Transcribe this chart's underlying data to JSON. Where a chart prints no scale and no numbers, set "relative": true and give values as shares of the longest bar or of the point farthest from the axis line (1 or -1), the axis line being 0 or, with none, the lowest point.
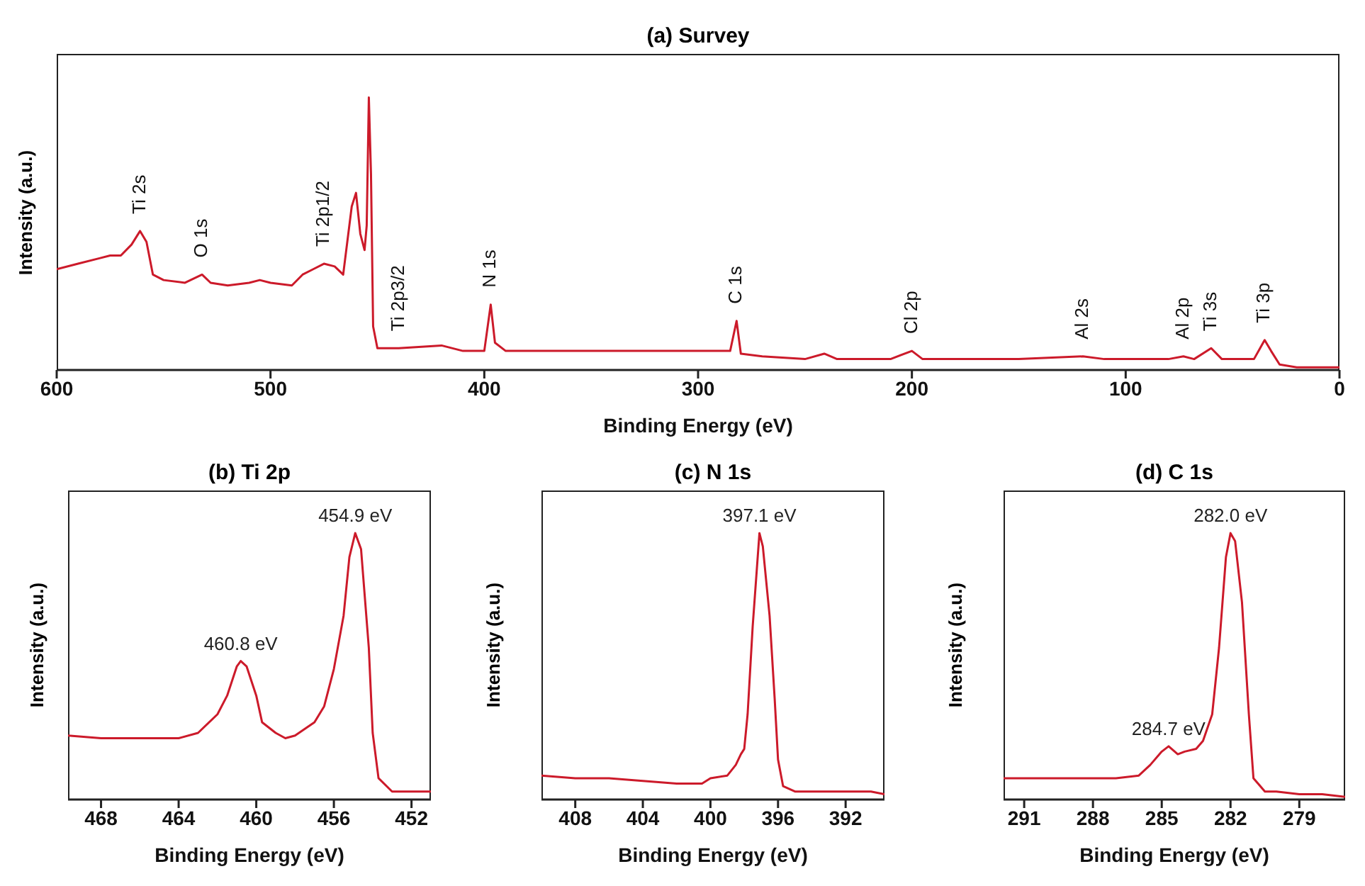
{
  "chart_data": [
    {
      "type": "line",
      "title": "(a) Survey",
      "xlabel": "Binding Energy (eV)",
      "ylabel": "Intensity (a.u.)",
      "relative": true,
      "xlim": [
        600,
        0
      ],
      "xticks": [
        600,
        500,
        400,
        300,
        200,
        100,
        0
      ],
      "x": [
        600,
        590,
        580,
        575,
        570,
        565,
        561,
        558,
        555,
        550,
        540,
        532,
        528,
        520,
        510,
        505,
        500,
        490,
        485,
        480,
        475,
        470,
        466,
        462,
        460,
        458,
        456,
        455,
        454,
        453,
        452,
        450,
        440,
        420,
        410,
        400,
        397,
        395,
        390,
        350,
        300,
        285,
        282,
        280,
        270,
        250,
        241,
        235,
        210,
        200,
        195,
        150,
        120,
        110,
        80,
        73,
        68,
        60,
        55,
        40,
        35,
        32,
        28,
        20,
        0
      ],
      "series": [
        {
          "color": "#cc1a2a",
          "values": [
            0.37,
            0.39,
            0.41,
            0.42,
            0.42,
            0.46,
            0.51,
            0.47,
            0.35,
            0.33,
            0.32,
            0.35,
            0.32,
            0.31,
            0.32,
            0.33,
            0.32,
            0.31,
            0.35,
            0.37,
            0.39,
            0.38,
            0.35,
            0.6,
            0.65,
            0.5,
            0.44,
            0.53,
            1,
            0.72,
            0.16,
            0.08,
            0.08,
            0.09,
            0.07,
            0.07,
            0.24,
            0.1,
            0.07,
            0.07,
            0.07,
            0.07,
            0.18,
            0.06,
            0.05,
            0.04,
            0.06,
            0.04,
            0.04,
            0.07,
            0.04,
            0.04,
            0.05,
            0.04,
            0.04,
            0.05,
            0.04,
            0.08,
            0.04,
            0.04,
            0.11,
            0.07,
            0.02,
            0.01,
            0.01
          ]
        }
      ],
      "annotations": [
        {
          "text": "Ti 2s",
          "x": 561,
          "y": 0.51
        },
        {
          "text": "O 1s",
          "x": 532,
          "y": 0.35
        },
        {
          "text": "Ti 2p1/2",
          "x": 475,
          "y": 0.39
        },
        {
          "text": "Ti 2p3/2",
          "x": 440,
          "y": 0.08
        },
        {
          "text": "N 1s",
          "x": 397,
          "y": 0.24
        },
        {
          "text": "C 1s",
          "x": 282,
          "y": 0.18
        },
        {
          "text": "Cl 2p",
          "x": 200,
          "y": 0.07
        },
        {
          "text": "Al 2s",
          "x": 120,
          "y": 0.05
        },
        {
          "text": "Al 2p",
          "x": 73,
          "y": 0.05
        },
        {
          "text": "Ti 3s",
          "x": 60,
          "y": 0.08
        },
        {
          "text": "Ti 3p",
          "x": 35,
          "y": 0.11
        }
      ]
    },
    {
      "type": "line",
      "title": "(b) Ti 2p",
      "xlabel": "Binding Energy (eV)",
      "ylabel": "Intensity (a.u.)",
      "relative": true,
      "xlim": [
        469.7,
        451
      ],
      "xticks": [
        468,
        464,
        460,
        456,
        452
      ],
      "x": [
        469.7,
        468,
        466,
        464,
        463,
        462,
        461.5,
        461,
        460.8,
        460.5,
        460,
        459.7,
        459,
        458.5,
        458,
        457,
        456.5,
        456,
        455.5,
        455.2,
        454.9,
        454.6,
        454.2,
        454,
        453.7,
        453,
        452,
        451
      ],
      "series": [
        {
          "color": "#cc1a2a",
          "values": [
            0.24,
            0.23,
            0.23,
            0.23,
            0.25,
            0.32,
            0.39,
            0.5,
            0.52,
            0.5,
            0.39,
            0.29,
            0.25,
            0.23,
            0.24,
            0.29,
            0.35,
            0.49,
            0.69,
            0.91,
            1,
            0.94,
            0.57,
            0.25,
            0.08,
            0.03,
            0.03,
            0.03
          ]
        }
      ],
      "annotations": [
        {
          "text": "454.9 eV",
          "x": 454.9,
          "y": 1
        },
        {
          "text": "460.8 eV",
          "x": 460.8,
          "y": 0.52
        }
      ]
    },
    {
      "type": "line",
      "title": "(c) N 1s",
      "xlabel": "Binding Energy (eV)",
      "ylabel": "Intensity (a.u.)",
      "relative": true,
      "xlim": [
        410,
        389.7
      ],
      "xticks": [
        408,
        404,
        400,
        396,
        392
      ],
      "x": [
        410,
        408,
        406,
        404,
        402,
        400.5,
        400,
        399,
        398.5,
        398.2,
        398,
        397.8,
        397.5,
        397.1,
        396.9,
        396.5,
        396.2,
        396,
        395.7,
        395,
        393,
        391,
        390.5,
        389.7
      ],
      "series": [
        {
          "color": "#cc1a2a",
          "values": [
            0.09,
            0.08,
            0.08,
            0.07,
            0.06,
            0.06,
            0.08,
            0.09,
            0.13,
            0.17,
            0.19,
            0.32,
            0.65,
            1,
            0.95,
            0.69,
            0.38,
            0.15,
            0.05,
            0.03,
            0.03,
            0.03,
            0.03,
            0.02
          ]
        }
      ],
      "annotations": [
        {
          "text": "397.1 eV",
          "x": 397.1,
          "y": 1
        }
      ]
    },
    {
      "type": "line",
      "title": "(d) C 1s",
      "xlabel": "Binding Energy (eV)",
      "ylabel": "Intensity (a.u.)",
      "relative": true,
      "xlim": [
        291.9,
        277
      ],
      "xticks": [
        291,
        288,
        285,
        282,
        279
      ],
      "x": [
        291.9,
        290,
        288,
        287,
        286,
        285.5,
        285,
        284.7,
        284.3,
        284,
        283.5,
        283.2,
        282.8,
        282.5,
        282.2,
        282,
        281.8,
        281.5,
        281.2,
        281,
        280.5,
        280,
        279,
        278,
        277
      ],
      "series": [
        {
          "color": "#cc1a2a",
          "values": [
            0.08,
            0.08,
            0.08,
            0.08,
            0.09,
            0.13,
            0.18,
            0.2,
            0.17,
            0.18,
            0.19,
            0.22,
            0.32,
            0.57,
            0.91,
            1,
            0.97,
            0.74,
            0.32,
            0.08,
            0.03,
            0.03,
            0.02,
            0.02,
            0.01
          ]
        }
      ],
      "annotations": [
        {
          "text": "282.0 eV",
          "x": 282,
          "y": 1
        },
        {
          "text": "284.7 eV",
          "x": 284.7,
          "y": 0.2
        }
      ]
    }
  ]
}
